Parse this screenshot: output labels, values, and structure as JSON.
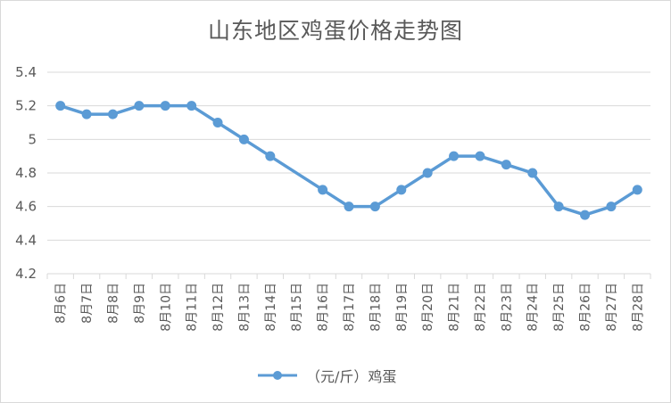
{
  "chart_data": {
    "type": "line",
    "title": "山东地区鸡蛋价格走势图",
    "categories": [
      "8月6日",
      "8月7日",
      "8月8日",
      "8月9日",
      "8月10日",
      "8月11日",
      "8月12日",
      "8月13日",
      "8月14日",
      "8月15日",
      "8月16日",
      "8月17日",
      "8月18日",
      "8月19日",
      "8月20日",
      "8月21日",
      "8月22日",
      "8月23日",
      "8月24日",
      "8月25日",
      "8月26日",
      "8月27日",
      "8月28日"
    ],
    "series": [
      {
        "name": "（元/斤）鸡蛋",
        "values": [
          5.2,
          5.15,
          5.15,
          5.2,
          5.2,
          5.2,
          5.1,
          5.0,
          4.9,
          null,
          4.7,
          4.6,
          4.6,
          4.7,
          4.8,
          4.9,
          4.9,
          4.85,
          4.8,
          4.6,
          4.55,
          4.6,
          4.7
        ],
        "color": "#5b9bd5"
      }
    ],
    "yticks": [
      "4.2",
      "4.4",
      "4.6",
      "4.8",
      "5",
      "5.2",
      "5.4"
    ],
    "ylim": [
      4.2,
      5.4
    ],
    "grid": true,
    "legend_position": "bottom"
  }
}
